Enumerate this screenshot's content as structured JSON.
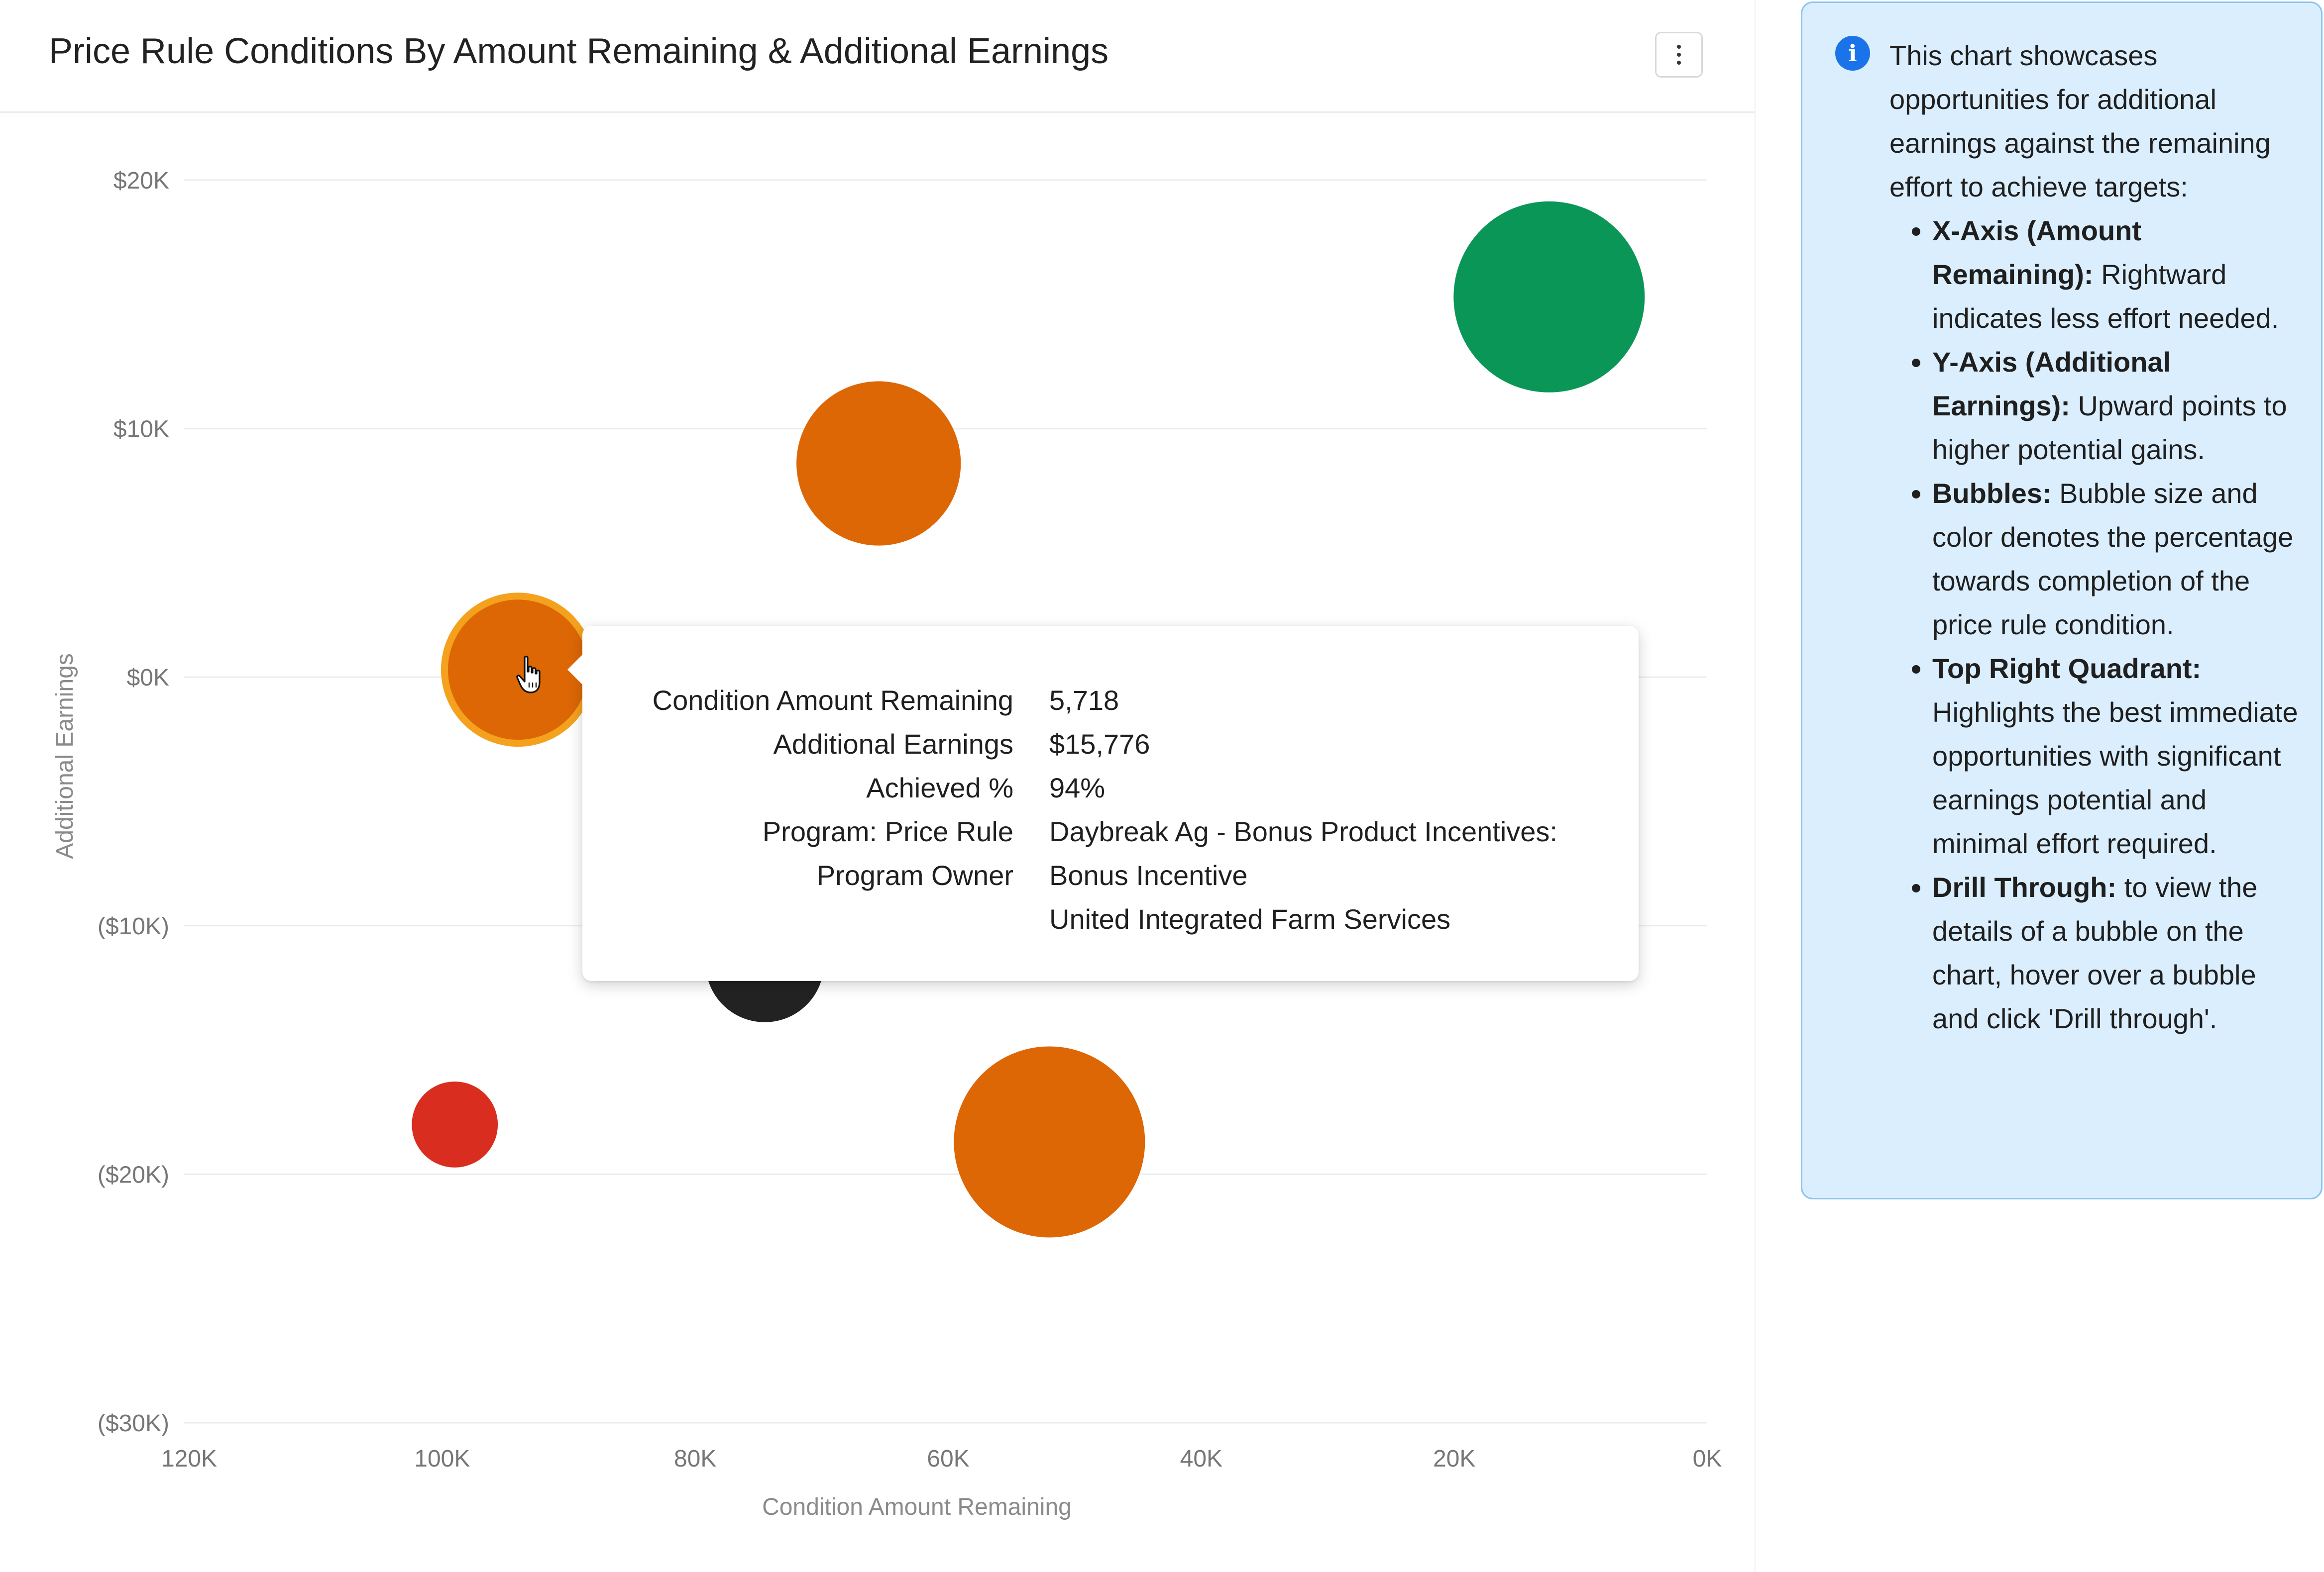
{
  "header": {
    "title": "Price Rule Conditions By Amount Remaining & Additional Earnings",
    "more_icon": "vertical-ellipsis-icon"
  },
  "chart_data": {
    "type": "scatter",
    "subtype": "bubble",
    "title": "Price Rule Conditions By Amount Remaining & Additional Earnings",
    "xlabel": "Condition Amount Remaining",
    "ylabel": "Additional Earnings",
    "xlim": [
      120000,
      0
    ],
    "x_reversed": true,
    "ylim": [
      -30000,
      20000
    ],
    "x_ticks": [
      120000,
      100000,
      80000,
      60000,
      40000,
      20000,
      0
    ],
    "x_tick_labels": [
      "120K",
      "100K",
      "80K",
      "60K",
      "40K",
      "20K",
      "0K"
    ],
    "y_ticks": [
      20000,
      10000,
      0,
      -10000,
      -20000,
      -30000
    ],
    "y_tick_labels": [
      "$20K",
      "$10K",
      "$0K",
      "($10K)",
      "($20K)",
      "($30K)"
    ],
    "grid": true,
    "size_encodes": "Achieved %",
    "color_encodes": "Achieved %",
    "points": [
      {
        "x": 12500,
        "y": 15300,
        "size": 1.0,
        "color": "#0a9657"
      },
      {
        "x": 65500,
        "y": 8600,
        "size": 0.86,
        "color": "#dd6705"
      },
      {
        "x": 94000,
        "y": 300,
        "size": 0.77,
        "color": "#dd6705",
        "highlighted": true,
        "highlight_color": "#f4a11e"
      },
      {
        "x": 74500,
        "y": -11500,
        "size": 0.62,
        "color": "#222222"
      },
      {
        "x": 99000,
        "y": -18000,
        "size": 0.45,
        "color": "#d92d20"
      },
      {
        "x": 52000,
        "y": -18700,
        "size": 1.0,
        "color": "#dd6705"
      }
    ]
  },
  "tooltip": {
    "labels": [
      "Condition Amount Remaining",
      "Additional Earnings",
      "Achieved %",
      "Program: Price Rule",
      "Program Owner",
      ""
    ],
    "values": [
      "5,718",
      "$15,776",
      "94%",
      "Daybreak Ag - Bonus Product Incentives:",
      "Bonus Incentive",
      "United Integrated Farm Services"
    ]
  },
  "info": {
    "icon": "info-icon",
    "intro": "This chart showcases opportunities for additional earnings against the remaining effort to achieve targets:",
    "items": [
      {
        "term": "X-Axis (Amount Remaining):",
        "text": " Rightward indicates less effort needed."
      },
      {
        "term": "Y-Axis (Additional Earnings):",
        "text": " Upward points to higher potential gains."
      },
      {
        "term": "Bubbles:",
        "text": " Bubble size and color denotes the percentage towards completion of the price rule condition."
      },
      {
        "term": "Top Right Quadrant:",
        "text": " Highlights the best immediate opportunities with significant earnings potential and minimal effort required."
      },
      {
        "term": "Drill Through:",
        "text": " to view the details of a bubble on the chart, hover over a bubble and click 'Drill through'."
      }
    ]
  }
}
